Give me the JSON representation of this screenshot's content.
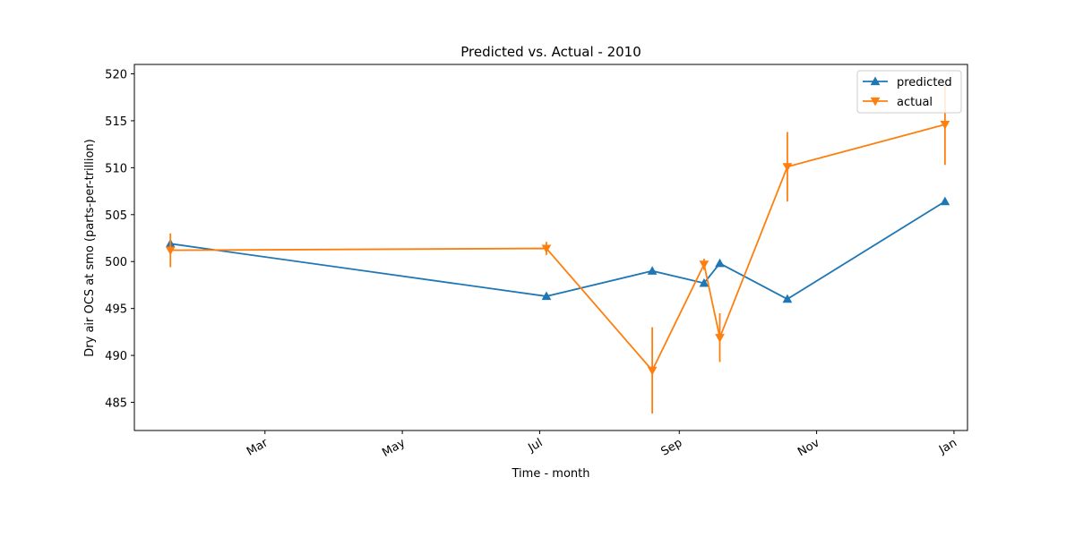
{
  "chart_data": {
    "type": "line",
    "title": "Predicted vs. Actual - 2010",
    "xlabel": "Time - month",
    "ylabel": "Dry air OCS at smo (parts-per-trillion)",
    "x_type": "date",
    "xlim": [
      "2010-01-02",
      "2011-01-07"
    ],
    "ylim": [
      482,
      521
    ],
    "x_ticks": [
      {
        "date": "2010-03-01",
        "label": "Mar"
      },
      {
        "date": "2010-05-01",
        "label": "May"
      },
      {
        "date": "2010-07-01",
        "label": "Jul"
      },
      {
        "date": "2010-09-01",
        "label": "Sep"
      },
      {
        "date": "2010-11-01",
        "label": "Nov"
      },
      {
        "date": "2011-01-01",
        "label": "Jan"
      }
    ],
    "y_ticks": [
      485,
      490,
      495,
      500,
      505,
      510,
      515,
      520
    ],
    "grid": false,
    "legend": "top-right",
    "series": [
      {
        "name": "predicted",
        "color": "#1f77b4",
        "marker": "triangle-up",
        "x": [
          "2010-01-18",
          "2010-07-04",
          "2010-08-20",
          "2010-09-12",
          "2010-09-19",
          "2010-10-19",
          "2010-12-28"
        ],
        "y": [
          501.9,
          496.3,
          499.0,
          497.7,
          499.8,
          496.0,
          506.4
        ]
      },
      {
        "name": "actual",
        "color": "#ff7f0e",
        "marker": "triangle-down",
        "x": [
          "2010-01-18",
          "2010-07-04",
          "2010-08-20",
          "2010-09-12",
          "2010-09-19",
          "2010-10-19",
          "2010-12-28"
        ],
        "y": [
          501.2,
          501.4,
          488.4,
          499.7,
          491.9,
          510.1,
          514.6
        ],
        "yerr": [
          1.8,
          0.7,
          4.6,
          0.6,
          2.6,
          3.7,
          4.3
        ]
      }
    ]
  }
}
